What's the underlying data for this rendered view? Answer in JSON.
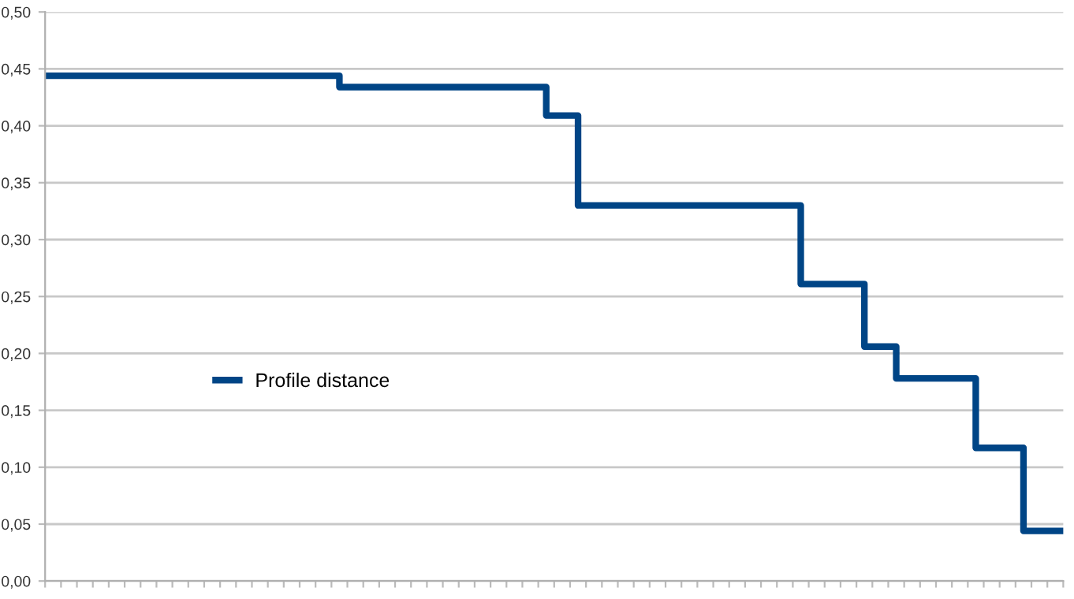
{
  "chart_data": {
    "type": "step",
    "categories": [
      null,
      null,
      null,
      null,
      null,
      null,
      null,
      null,
      null,
      null,
      null,
      null,
      null,
      null,
      null,
      null,
      null,
      null,
      null,
      null,
      null,
      null,
      null,
      null,
      null,
      null,
      null,
      null,
      null,
      null,
      null,
      null,
      null,
      null,
      null,
      null,
      null,
      null,
      null,
      null,
      null,
      null,
      null,
      null,
      null,
      null,
      null,
      null,
      null,
      null,
      null,
      null,
      null,
      null,
      null,
      null,
      null,
      null,
      null,
      null,
      null,
      null,
      null,
      null,
      null
    ],
    "series": [
      {
        "name": "Profile distance",
        "color": "#004586",
        "values": [
          0.444,
          0.444,
          0.444,
          0.444,
          0.444,
          0.444,
          0.444,
          0.444,
          0.444,
          0.444,
          0.444,
          0.444,
          0.444,
          0.444,
          0.444,
          0.444,
          0.444,
          0.444,
          0.444,
          0.434,
          0.434,
          0.434,
          0.434,
          0.434,
          0.434,
          0.434,
          0.434,
          0.434,
          0.434,
          0.434,
          0.434,
          0.434,
          0.409,
          0.409,
          0.33,
          0.33,
          0.33,
          0.33,
          0.33,
          0.33,
          0.33,
          0.33,
          0.33,
          0.33,
          0.33,
          0.33,
          0.33,
          0.33,
          0.261,
          0.261,
          0.261,
          0.261,
          0.206,
          0.206,
          0.178,
          0.178,
          0.178,
          0.178,
          0.178,
          0.117,
          0.117,
          0.117,
          0.044,
          0.044,
          0.044
        ]
      }
    ],
    "ylim": [
      0,
      0.5
    ],
    "yticks": [
      {
        "value": 0,
        "label": "0,00"
      },
      {
        "value": 0.05,
        "label": "0,05"
      },
      {
        "value": 0.1,
        "label": "0,10"
      },
      {
        "value": 0.15,
        "label": "0,15"
      },
      {
        "value": 0.2,
        "label": "0,20"
      },
      {
        "value": 0.25,
        "label": "0,25"
      },
      {
        "value": 0.3,
        "label": "0,30"
      },
      {
        "value": 0.35,
        "label": "0,35"
      },
      {
        "value": 0.4,
        "label": "0,40"
      },
      {
        "value": 0.45,
        "label": "0,45"
      },
      {
        "value": 0.5,
        "label": "0,50"
      }
    ],
    "grid": "y",
    "legend": "left",
    "line_style": "solid",
    "marker": "none"
  }
}
